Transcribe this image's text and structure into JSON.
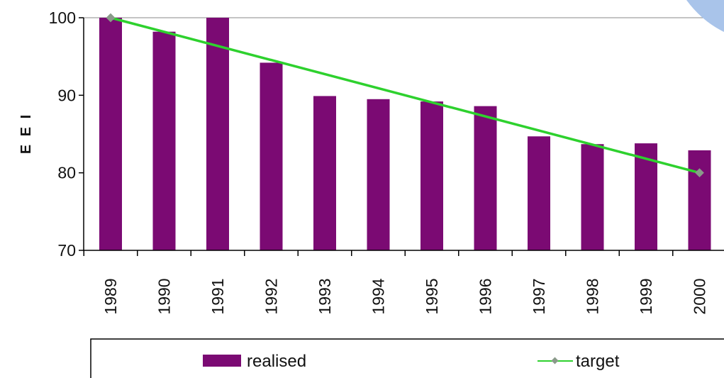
{
  "chart_data": {
    "type": "bar",
    "categories": [
      "1989",
      "1990",
      "1991",
      "1992",
      "1993",
      "1994",
      "1995",
      "1996",
      "1997",
      "1998",
      "1999",
      "2000"
    ],
    "series": [
      {
        "name": "realised",
        "type": "bar",
        "color": "#7b0a73",
        "values": [
          100,
          98.2,
          100,
          94.2,
          89.9,
          89.5,
          89.2,
          88.6,
          84.7,
          83.7,
          83.8,
          82.9
        ]
      },
      {
        "name": "target",
        "type": "line",
        "color": "#2ed12e",
        "marker_color": "#8a9a8a",
        "values": [
          100,
          null,
          null,
          null,
          null,
          null,
          null,
          null,
          null,
          null,
          null,
          80
        ]
      }
    ],
    "ylabel": "E E I",
    "ylim": [
      70,
      100
    ],
    "yticks": [
      70,
      80,
      90,
      100
    ],
    "grid": false,
    "legend": {
      "placement": "bottom",
      "items": [
        "realised",
        "target"
      ]
    }
  }
}
